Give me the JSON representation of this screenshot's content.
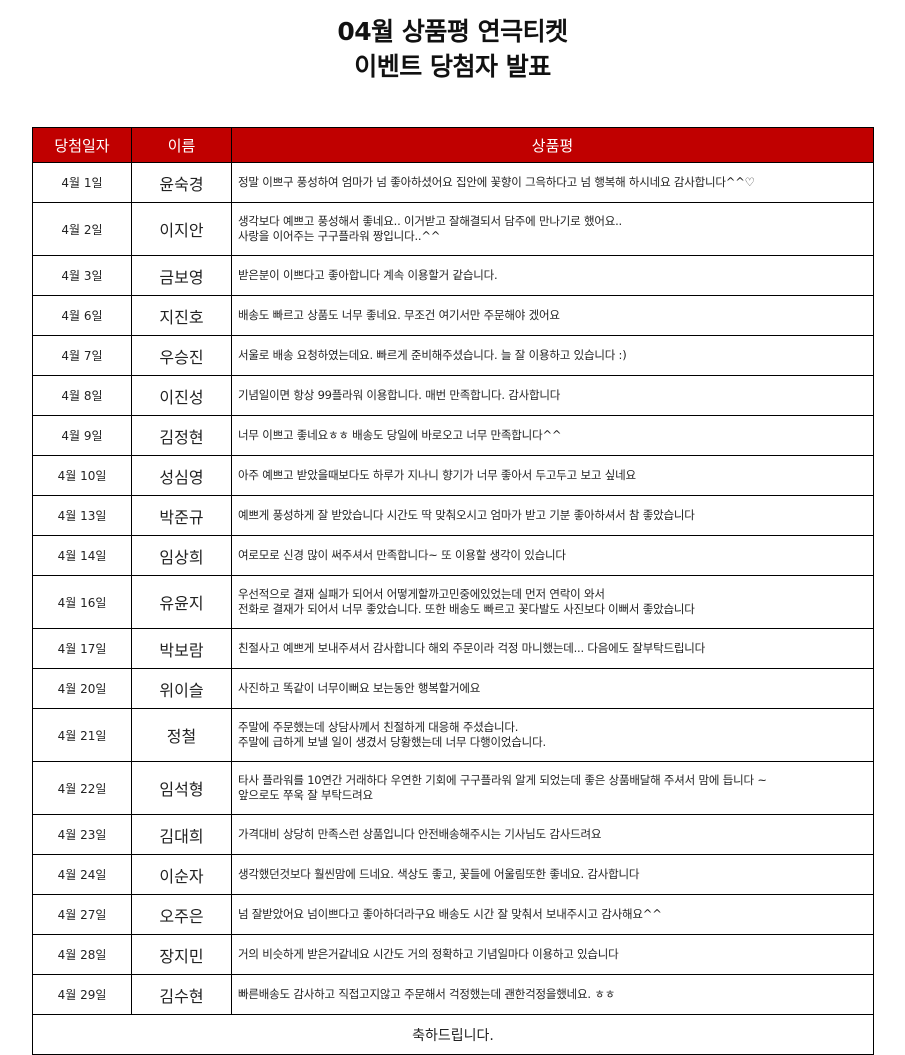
{
  "title": {
    "line1": "04월 상품평 연극티켓",
    "line2": "이벤트 당첨자  발표"
  },
  "colors": {
    "header_bg": "#c00000",
    "header_text": "#ffffff"
  },
  "table": {
    "headers": [
      "당첨일자",
      "이름",
      "상품평"
    ],
    "rows": [
      {
        "date": "4월 1일",
        "name": "윤숙경",
        "review": " 정말 이쁘구 풍성하여 엄마가 넘 좋아하셨어요 집안에 꽃향이 그윽하다고 넘 행복해 하시네요 감사합니다^^♡"
      },
      {
        "date": "4월 2일",
        "name": "이지안",
        "review": "생각보다 예쁘고 풍성해서 좋네요.. 이거받고 잘해결되서 담주에 만나기로 했어요..\n사랑을 이어주는 구구플라워 짱입니다..^^"
      },
      {
        "date": "4월 3일",
        "name": "금보영",
        "review": "받은분이 이쁘다고 좋아합니다 계속 이용할거 같습니다."
      },
      {
        "date": "4월 6일",
        "name": "지진호",
        "review": "배송도 빠르고 상품도 너무 좋네요. 무조건 여기서만 주문해야 겠어요"
      },
      {
        "date": "4월 7일",
        "name": "우승진",
        "review": "서울로 배송 요청하였는데요. 빠르게 준비해주셨습니다. 늘 잘 이용하고 있습니다 :)"
      },
      {
        "date": "4월 8일",
        "name": "이진성",
        "review": "기념일이면 항상 99플라워 이용합니다. 매번 만족합니다. 감사합니다"
      },
      {
        "date": "4월 9일",
        "name": "김정현",
        "review": " 너무 이쁘고 좋네요ㅎㅎ 배송도 당일에 바로오고 너무 만족합니다^^"
      },
      {
        "date": "4월 10일",
        "name": "성심영",
        "review": "아주 예쁘고 받았을때보다도 하루가 지나니 향기가 너무 좋아서 두고두고 보고 싶네요"
      },
      {
        "date": "4월 13일",
        "name": "박준규",
        "review": "예쁘게 풍성하게 잘 받았습니다 시간도 딱 맞춰오시고 엄마가 받고 기분 좋아하셔서 참 좋았습니다"
      },
      {
        "date": "4월 14일",
        "name": "임상희",
        "review": "여로모로 신경 많이 써주셔서 만족합니다~ 또 이용할 생각이 있습니다"
      },
      {
        "date": "4월 16일",
        "name": "유윤지",
        "review": "우선적으로 결재 실패가 되어서 어떻게할까고민중에있었는데 먼저 연락이 와서\n전화로 결재가 되어서 너무 좋았습니다. 또한 배송도 빠르고 꽃다발도 사진보다 이뻐서 좋았습니다"
      },
      {
        "date": "4월 17일",
        "name": "박보람",
        "review": "친절사고 예쁘게 보내주셔서 감사합니다 해외 주문이라 걱정 마니했는데... 다음에도 잘부탁드립니다"
      },
      {
        "date": "4월 20일",
        "name": "위이슬",
        "review": "사진하고 똑같이 너무이뻐요 보는동안 행복할거에요"
      },
      {
        "date": "4월 21일",
        "name": "정철",
        "review": "주말에 주문했는데 상담사께서 친절하게 대응해 주셨습니다.\n주말에 급하게 보낼 일이 생겼서 당황했는데 너무 다행이었습니다."
      },
      {
        "date": "4월 22일",
        "name": "임석형",
        "review": "타사 플라워를 10연간 거래하다 우연한 기회에 구구플라워 알게 되었는데 좋은 상품배달해 주셔서 맘에 듭니다 ~\n앞으로도 쭈욱 잘 부탁드려요"
      },
      {
        "date": "4월 23일",
        "name": "김대희",
        "review": "가격대비 상당히 만족스런 상품입니다  안전배송해주시는 기사님도 감사드려요"
      },
      {
        "date": "4월 24일",
        "name": "이순자",
        "review": "생각했던것보다 훨씬맘에 드네요. 색상도 좋고, 꽃들에 어울림또한 좋네요. 감사합니다"
      },
      {
        "date": "4월 27일",
        "name": "오주은",
        "review": "넘 잘받았어요 넘이쁘다고 좋아하더라구요 배송도 시간 잘 맞춰서 보내주시고 감사해요^^"
      },
      {
        "date": "4월 28일",
        "name": "장지민",
        "review": "거의 비슷하게 받은거같네요 시간도 거의 정확하고 기념일마다 이용하고 있습니다"
      },
      {
        "date": "4월 29일",
        "name": "김수현",
        "review": "빠른배송도 감사하고 직접고지않고 주문해서 걱정했는데 괜한걱정을했네요. ㅎㅎ"
      }
    ],
    "footer": "축하드립니다."
  }
}
